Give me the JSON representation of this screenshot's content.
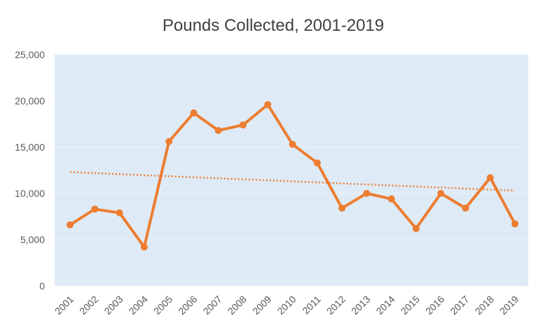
{
  "chart_data": {
    "type": "line",
    "title": "Pounds Collected, 2001-2019",
    "xlabel": "",
    "ylabel": "",
    "categories": [
      "2001",
      "2002",
      "2003",
      "2004",
      "2005",
      "2006",
      "2007",
      "2008",
      "2009",
      "2010",
      "2011",
      "2012",
      "2013",
      "2014",
      "2015",
      "2016",
      "2017",
      "2018",
      "2019"
    ],
    "series": [
      {
        "values": [
          6600,
          8300,
          7900,
          4200,
          15600,
          18700,
          16800,
          17400,
          19600,
          15300,
          13300,
          8400,
          10000,
          9400,
          6200,
          10000,
          8400,
          11700,
          6700
        ]
      }
    ],
    "trendline": {
      "type": "linear",
      "start": 12300,
      "end": 10300
    },
    "ylim": [
      0,
      25000
    ],
    "yticks": [
      0,
      5000,
      10000,
      15000,
      20000,
      25000
    ],
    "ytick_labels": [
      "0",
      "5,000",
      "10,000",
      "15,000",
      "20,000",
      "25,000"
    ],
    "grid": true,
    "legend": "none",
    "colors": {
      "line": "#ED7D31",
      "plot_background": "#DEEBF7",
      "gridline": "#EEF3FA"
    }
  }
}
